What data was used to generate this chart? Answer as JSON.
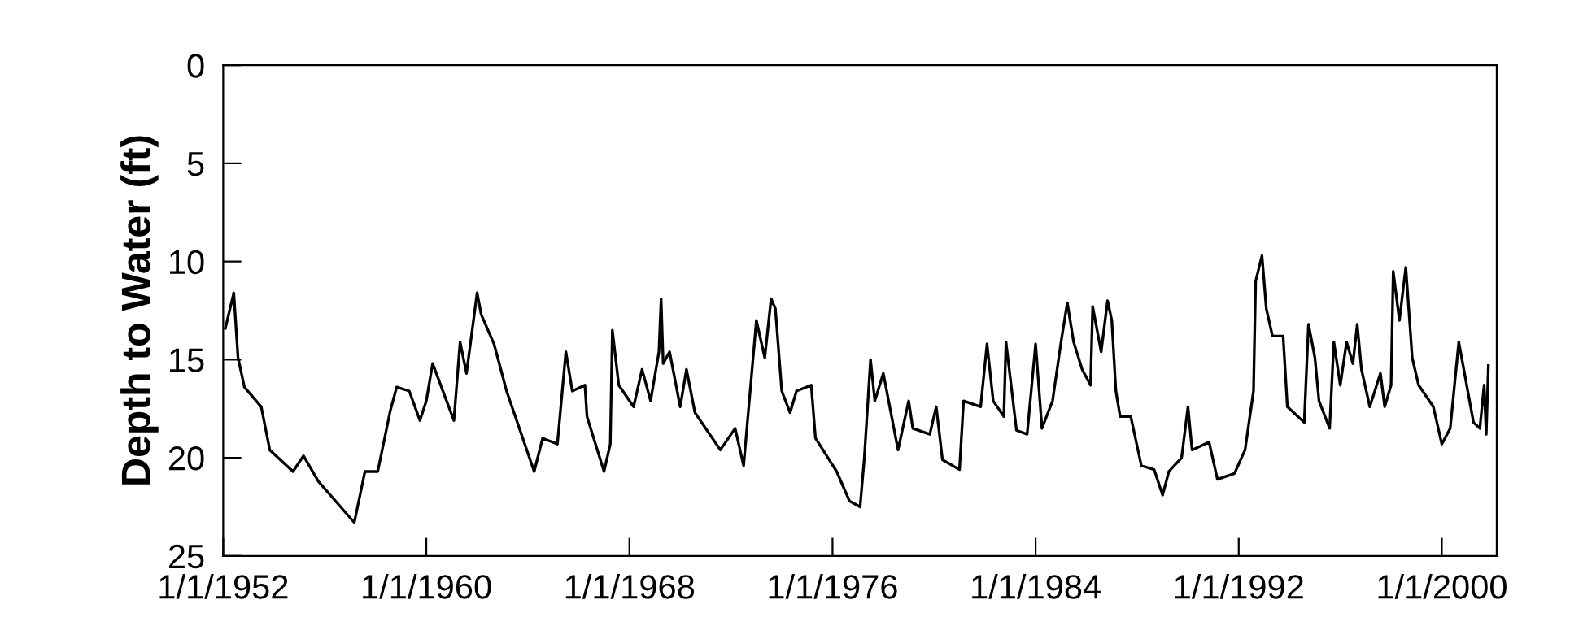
{
  "chart_data": {
    "type": "line",
    "ylabel": "Depth to Water (ft)",
    "xlim": [
      "1952-01-01",
      "2002-03-01"
    ],
    "xticks": [
      {
        "value": "1952-01-01",
        "label": "1/1/1952"
      },
      {
        "value": "1960-01-01",
        "label": "1/1/1960"
      },
      {
        "value": "1968-01-01",
        "label": "1/1/1968"
      },
      {
        "value": "1976-01-01",
        "label": "1/1/1976"
      },
      {
        "value": "1984-01-01",
        "label": "1/1/1984"
      },
      {
        "value": "1992-01-01",
        "label": "1/1/1992"
      },
      {
        "value": "2000-01-01",
        "label": "1/1/2000"
      }
    ],
    "ylim": [
      25,
      0
    ],
    "yticks": [
      0,
      5,
      10,
      15,
      20,
      25
    ],
    "grid": false,
    "legend": false,
    "marker": "none",
    "line_style": "solid",
    "series": [
      {
        "color": "#000000",
        "x": [
          "1952-02",
          "1952-06",
          "1952-08",
          "1952-11",
          "1953-07",
          "1953-11",
          "1954-10",
          "1955-03",
          "1955-10",
          "1957-03",
          "1957-08",
          "1958-02",
          "1958-08",
          "1958-11",
          "1959-05",
          "1959-10",
          "1960-01",
          "1960-04",
          "1961-02",
          "1961-05",
          "1961-08",
          "1962-01",
          "1962-03",
          "1962-09",
          "1963-03",
          "1964-04",
          "1964-08",
          "1965-03",
          "1965-07",
          "1965-10",
          "1966-04",
          "1966-05",
          "1967-01",
          "1967-04",
          "1967-05",
          "1967-08",
          "1968-03",
          "1968-07",
          "1968-11",
          "1969-03",
          "1969-04",
          "1969-05",
          "1969-08",
          "1970-01",
          "1970-04",
          "1970-08",
          "1971-08",
          "1972-03",
          "1972-07",
          "1972-09",
          "1973-01",
          "1973-05",
          "1973-08",
          "1973-10",
          "1974-01",
          "1974-05",
          "1974-08",
          "1975-03",
          "1975-05",
          "1976-03",
          "1976-09",
          "1977-02",
          "1977-04",
          "1977-07",
          "1977-09",
          "1978-01",
          "1978-08",
          "1979-01",
          "1979-03",
          "1979-11",
          "1980-02",
          "1980-05",
          "1981-01",
          "1981-03",
          "1981-11",
          "1982-02",
          "1982-05",
          "1982-10",
          "1982-11",
          "1983-04",
          "1983-09",
          "1984-01",
          "1984-04",
          "1984-09",
          "1985-01",
          "1985-04",
          "1985-07",
          "1985-11",
          "1986-03",
          "1986-04",
          "1986-08",
          "1986-11",
          "1987-01",
          "1987-03",
          "1987-05",
          "1987-10",
          "1988-03",
          "1988-09",
          "1989-01",
          "1989-04",
          "1989-10",
          "1990-01",
          "1990-03",
          "1990-11",
          "1991-03",
          "1991-11",
          "1992-04",
          "1992-08",
          "1992-09",
          "1992-12",
          "1993-02",
          "1993-05",
          "1993-10",
          "1993-12",
          "1994-08",
          "1994-10",
          "1995-01",
          "1995-03",
          "1995-08",
          "1995-10",
          "1996-01",
          "1996-04",
          "1996-07",
          "1996-09",
          "1996-11",
          "1997-03",
          "1997-08",
          "1997-10",
          "1998-01",
          "1998-02",
          "1998-05",
          "1998-08",
          "1998-11",
          "1999-02",
          "1999-09",
          "2000-01",
          "2000-05",
          "2000-09",
          "2001-04",
          "2001-07",
          "2001-09",
          "2001-10",
          "2001-11"
        ],
        "values": [
          13.4,
          11.6,
          14.9,
          16.4,
          17.4,
          19.6,
          20.7,
          19.9,
          21.2,
          23.3,
          20.7,
          20.7,
          17.6,
          16.4,
          16.6,
          18.1,
          17.1,
          15.2,
          18.1,
          14.1,
          15.7,
          11.6,
          12.7,
          14.2,
          16.6,
          20.7,
          19.0,
          19.3,
          14.6,
          16.6,
          16.3,
          17.9,
          20.7,
          19.3,
          13.5,
          16.3,
          17.4,
          15.5,
          17.1,
          14.6,
          11.9,
          15.2,
          14.6,
          17.4,
          15.5,
          17.7,
          19.6,
          18.5,
          20.4,
          17.9,
          13.0,
          14.9,
          11.9,
          12.4,
          16.6,
          17.7,
          16.6,
          16.3,
          19.0,
          20.7,
          22.2,
          22.5,
          20.1,
          15.0,
          17.1,
          15.7,
          19.6,
          17.1,
          18.5,
          18.8,
          17.4,
          20.1,
          20.6,
          17.1,
          17.4,
          14.2,
          17.1,
          17.9,
          14.1,
          18.6,
          18.8,
          14.2,
          18.5,
          17.1,
          14.1,
          12.1,
          14.1,
          15.5,
          16.3,
          12.3,
          14.6,
          12.0,
          13.0,
          16.6,
          17.9,
          17.9,
          20.4,
          20.6,
          21.9,
          20.7,
          20.0,
          17.4,
          19.6,
          19.2,
          21.1,
          20.8,
          19.6,
          16.6,
          11.0,
          9.7,
          12.4,
          13.8,
          13.8,
          17.4,
          18.2,
          13.2,
          14.9,
          17.1,
          18.5,
          14.1,
          16.3,
          14.1,
          15.2,
          13.2,
          15.5,
          17.4,
          15.7,
          17.4,
          16.3,
          10.5,
          13.0,
          10.3,
          14.9,
          16.3,
          17.4,
          19.3,
          18.5,
          14.1,
          18.2,
          18.5,
          16.3,
          18.8,
          15.3
        ]
      }
    ]
  }
}
